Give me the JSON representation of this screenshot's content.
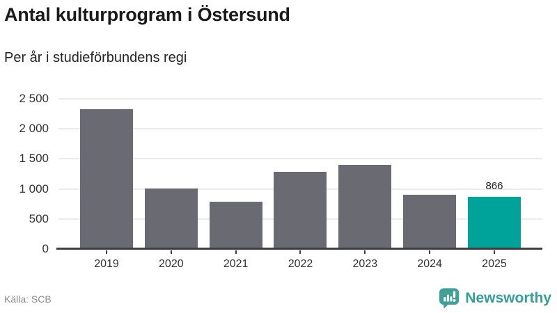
{
  "chart_data": {
    "type": "bar",
    "title": "Antal kulturprogram i Östersund",
    "subtitle": "Per år i studieförbundens regi",
    "categories": [
      "2019",
      "2020",
      "2021",
      "2022",
      "2023",
      "2024",
      "2025"
    ],
    "values": [
      2330,
      1010,
      785,
      1290,
      1400,
      905,
      866
    ],
    "value_labels": [
      "",
      "",
      "",
      "",
      "",
      "",
      "866"
    ],
    "xlabel": "",
    "ylabel": "",
    "ylim": [
      0,
      2500
    ],
    "yticks": [
      {
        "value": 0,
        "label": "0"
      },
      {
        "value": 500,
        "label": "500"
      },
      {
        "value": 1000,
        "label": "1 000"
      },
      {
        "value": 1500,
        "label": "1 500"
      },
      {
        "value": 2000,
        "label": "2 000"
      },
      {
        "value": 2500,
        "label": "2 500"
      }
    ],
    "grid": true,
    "legend_position": "none",
    "bar_default_color": "#6a6a72",
    "highlight_color": "#00a39a",
    "highlight_index": 6,
    "gridline_color": "#ebebeb",
    "axis_color": "#3d3d42"
  },
  "footer": {
    "source": "Källa: SCB",
    "brand": "Newsworthy",
    "brand_color": "#33a099"
  }
}
